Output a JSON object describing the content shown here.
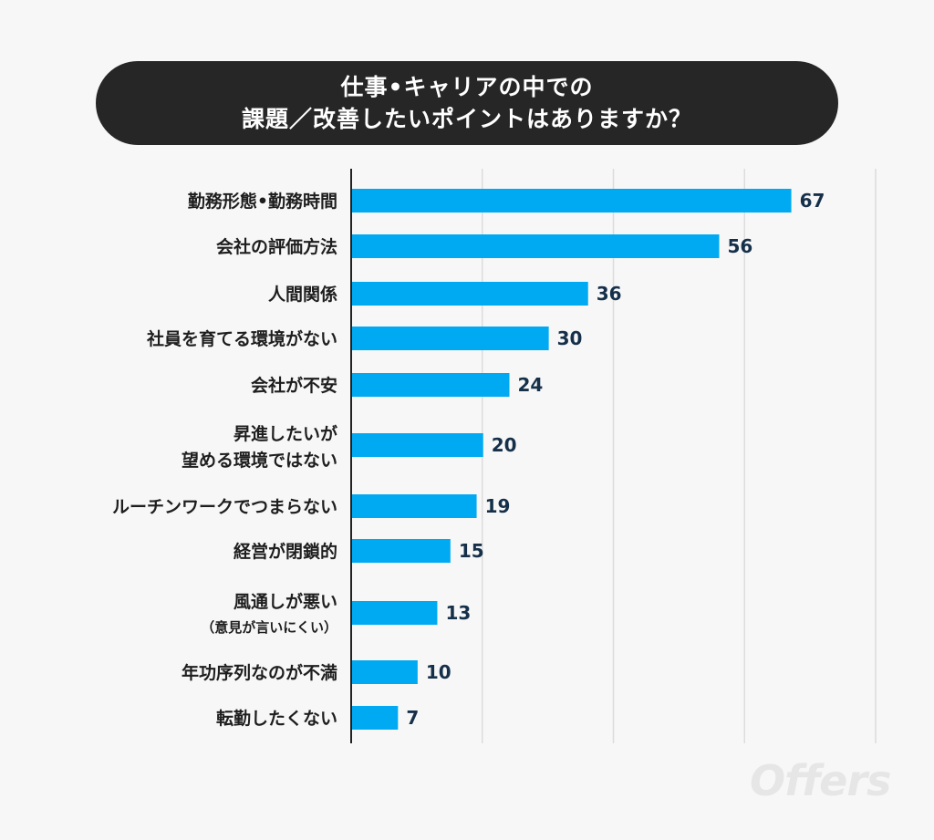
{
  "title": {
    "line1": "仕事•キャリアの中での",
    "line2": "課題／改善したいポイントはありますか？"
  },
  "watermark": "Offers",
  "colors": {
    "bar": "#00aaf2",
    "title_bg": "#262626",
    "value_text": "#16304a",
    "grid": "#dcdcdc",
    "axis": "#222222"
  },
  "chart_data": {
    "type": "bar",
    "orientation": "horizontal",
    "title": "仕事•キャリアの中での課題／改善したいポイントはありますか？",
    "categories": [
      "勤務形態•勤務時間",
      "会社の評価方法",
      "人間関係",
      "社員を育てる環境がない",
      "会社が不安",
      "昇進したいが望める環境ではない",
      "ルーチンワークでつまらない",
      "経営が閉鎖的",
      "風通しが悪い（意見が言いにくい）",
      "年功序列なのが不満",
      "転勤したくない"
    ],
    "category_lines": [
      [
        "勤務形態•勤務時間"
      ],
      [
        "会社の評価方法"
      ],
      [
        "人間関係"
      ],
      [
        "社員を育てる環境がない"
      ],
      [
        "会社が不安"
      ],
      [
        "昇進したいが",
        "望める環境ではない"
      ],
      [
        "ルーチンワークでつまらない"
      ],
      [
        "経営が閉鎖的"
      ],
      [
        "風通しが悪い",
        "（意見が言いにくい）"
      ],
      [
        "年功序列なのが不満"
      ],
      [
        "転勤したくない"
      ]
    ],
    "values": [
      67,
      56,
      36,
      30,
      24,
      20,
      19,
      15,
      13,
      10,
      7
    ],
    "xlim": [
      0,
      80
    ],
    "grid": true,
    "legend": "none",
    "xlabel": "",
    "ylabel": ""
  }
}
